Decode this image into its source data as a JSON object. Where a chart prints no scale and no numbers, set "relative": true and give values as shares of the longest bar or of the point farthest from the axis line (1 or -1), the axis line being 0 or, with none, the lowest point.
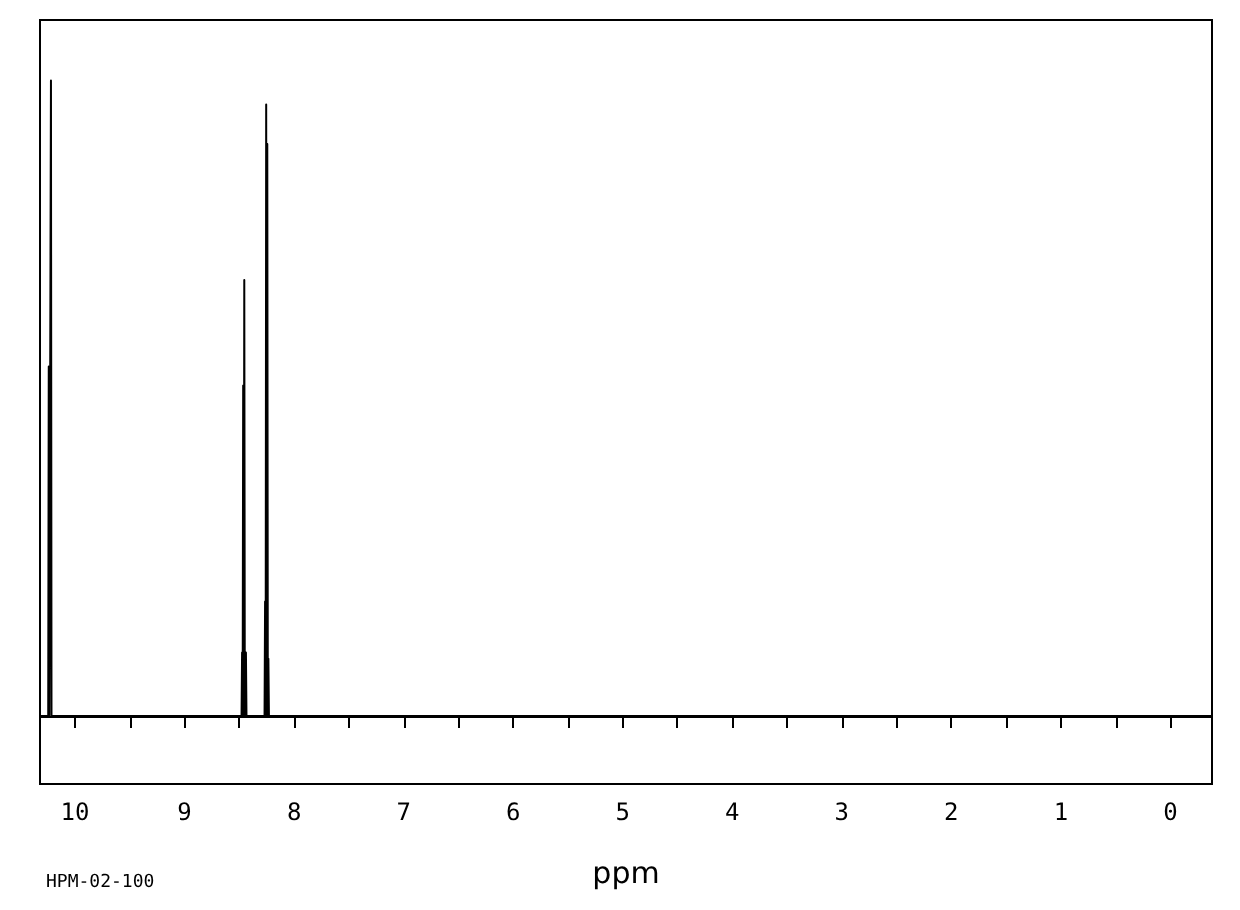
{
  "chart_data": {
    "type": "line",
    "relative": true,
    "xlabel": "ppm",
    "annotations": [
      "HPM-02-100"
    ],
    "marker": "none",
    "xlim": [
      10.32,
      -0.38
    ],
    "xticks": [
      0,
      {
        "value": 0.5,
        "label": null
      },
      1,
      {
        "value": 1.5,
        "label": null
      },
      2,
      {
        "value": 2.5,
        "label": null
      },
      3,
      {
        "value": 3.5,
        "label": null
      },
      4,
      {
        "value": 4.5,
        "label": null
      },
      5,
      {
        "value": 5.5,
        "label": null
      },
      6,
      {
        "value": 6.5,
        "label": null
      },
      7,
      {
        "value": 7.5,
        "label": null
      },
      8,
      {
        "value": 8.5,
        "label": null
      },
      9,
      {
        "value": 9.5,
        "label": null
      },
      10
    ],
    "series": [
      {
        "color": "#000000",
        "x": [
          10.32,
          10.245,
          10.24,
          10.235,
          10.225,
          10.22,
          10.215,
          8.48,
          8.475,
          8.47,
          8.465,
          8.46,
          8.455,
          8.45,
          8.44,
          8.435,
          8.27,
          8.265,
          8.26,
          8.255,
          8.25,
          8.245,
          8.24,
          8.235,
          8.23,
          -0.38
        ],
        "values": [
          0,
          0,
          0.55,
          0,
          0,
          1,
          0,
          0,
          0.1,
          0,
          0.52,
          0,
          0.686,
          0,
          0.1,
          0,
          0,
          0.18,
          0,
          0.962,
          0,
          0.9,
          0,
          0.09,
          0,
          0
        ]
      }
    ]
  }
}
